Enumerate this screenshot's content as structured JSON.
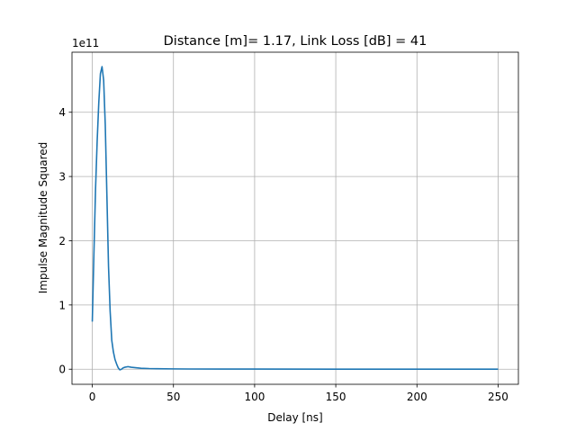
{
  "chart_data": {
    "type": "line",
    "title": "Distance [m]= 1.17, Link Loss [dB] = 41",
    "xlabel": "Delay [ns]",
    "ylabel": "Impulse Magnitude Squared",
    "y_scale_label": "1e11",
    "xlim": [
      -12.5,
      262.5
    ],
    "ylim": [
      -0.235,
      4.935
    ],
    "x_ticks": [
      0,
      50,
      100,
      150,
      200,
      250
    ],
    "y_ticks": [
      0,
      1,
      2,
      3,
      4
    ],
    "grid": true,
    "series": [
      {
        "color": "#1f77b4",
        "x": [
          0,
          1,
          2,
          3,
          4,
          5,
          6,
          7,
          8,
          9,
          10,
          11,
          12,
          13,
          14,
          15,
          16,
          17,
          18,
          19,
          20,
          22,
          24,
          26,
          28,
          30,
          35,
          40,
          50,
          60,
          80,
          100,
          150,
          200,
          250
        ],
        "y": [
          0.74,
          1.8,
          2.8,
          3.55,
          4.15,
          4.6,
          4.71,
          4.5,
          3.8,
          2.7,
          1.6,
          0.9,
          0.45,
          0.27,
          0.15,
          0.08,
          0.02,
          -0.01,
          0.0,
          0.02,
          0.03,
          0.04,
          0.03,
          0.025,
          0.02,
          0.015,
          0.01,
          0.008,
          0.005,
          0.003,
          0.002,
          0.002,
          0.001,
          0.001,
          0.0
        ]
      }
    ]
  }
}
